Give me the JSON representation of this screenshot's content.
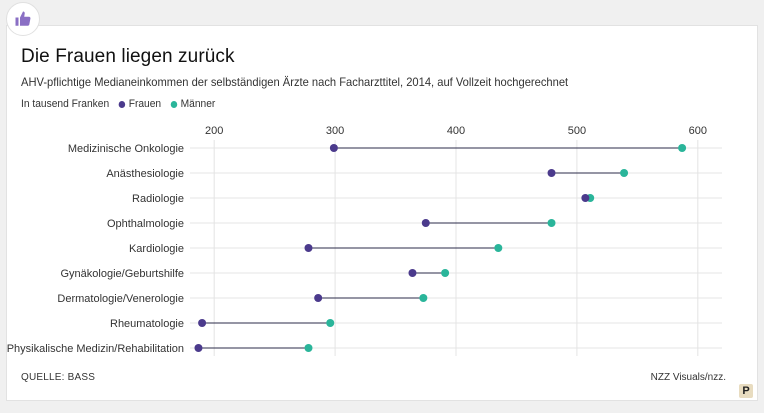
{
  "header": {
    "title": "Die Frauen liegen zurück",
    "subtitle": "AHV-pflichtige Medianeinkommen der selbständigen Ärzte nach Facharzttitel, 2014, auf Vollzeit hochgerechnet",
    "unit": "In tausend Franken",
    "like_icon": "thumbs-up-icon"
  },
  "footer": {
    "source": "QUELLE: BASS",
    "credit": "NZZ Visuals/nzz.",
    "logo_letter": "P"
  },
  "colors": {
    "frauen": "#4b3a8c",
    "maenner": "#2ab59a",
    "grid": "#e4e4e4",
    "connector": "#2b2b4a",
    "like": "#8a6fc4"
  },
  "chart_data": {
    "type": "dot-plot",
    "xlim": [
      180,
      620
    ],
    "xticks": [
      200,
      300,
      400,
      500,
      600
    ],
    "xtick_labels": [
      "200",
      "300",
      "400",
      "500",
      "600"
    ],
    "xlabel": "",
    "ylabel": "",
    "legend_position": "top-left",
    "categories": [
      "Medizinische Onkologie",
      "Anästhesiologie",
      "Radiologie",
      "Ophthalmologie",
      "Kardiologie",
      "Gynäkologie/Geburtshilfe",
      "Dermatologie/Venerologie",
      "Rheumatologie",
      "Physikalische Medizin/Rehabilitation"
    ],
    "series": [
      {
        "name": "Frauen",
        "values": [
          299,
          479,
          507,
          375,
          278,
          364,
          286,
          190,
          187
        ]
      },
      {
        "name": "Männer",
        "values": [
          587,
          539,
          511,
          479,
          435,
          391,
          373,
          296,
          278
        ]
      }
    ]
  }
}
